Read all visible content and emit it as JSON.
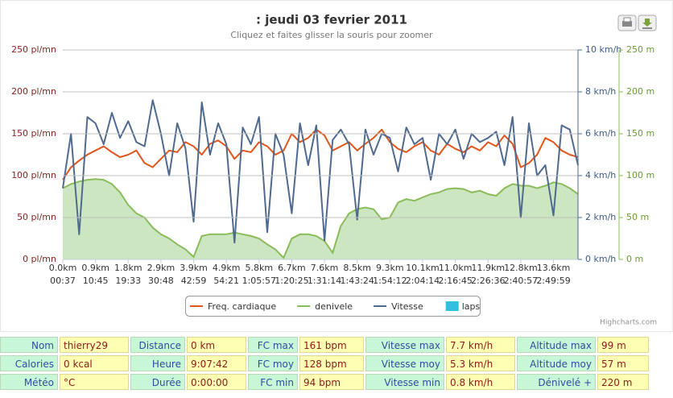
{
  "chart_data": {
    "type": "line",
    "title": ": jeudi 03 fevrier 2011",
    "subtitle": "Cliquez et faites glisser la souris pour zoomer",
    "xlim": [
      0,
      63
    ],
    "xticks": [
      {
        "value": 0,
        "label": "0.0km"
      },
      {
        "value": 4,
        "label": "0.9km"
      },
      {
        "value": 8,
        "label": "1.8km"
      },
      {
        "value": 12,
        "label": "2.9km"
      },
      {
        "value": 16,
        "label": "3.9km"
      },
      {
        "value": 20,
        "label": "4.9km"
      },
      {
        "value": 24,
        "label": "5.8km"
      },
      {
        "value": 28,
        "label": "6.7km"
      },
      {
        "value": 32,
        "label": "7.6km"
      },
      {
        "value": 36,
        "label": "8.5km"
      },
      {
        "value": 40,
        "label": "9.3km"
      },
      {
        "value": 44,
        "label": "10.1km"
      },
      {
        "value": 48,
        "label": "11.0km"
      },
      {
        "value": 52,
        "label": "11.9km"
      },
      {
        "value": 56,
        "label": "12.8km"
      },
      {
        "value": 60,
        "label": "13.6km"
      }
    ],
    "xtick_times": [
      "00:37",
      "10:45",
      "19:33",
      "30:48",
      "42:59",
      "54:21",
      "1:05:57",
      "1:20:25",
      "1:31:14",
      "1:43:24",
      "1:54:12",
      "2:04:14",
      "2:16:45",
      "2:26:36",
      "2:40:57",
      "2:49:59"
    ],
    "ylim": [
      0,
      250
    ],
    "yticks": [
      {
        "value": 0,
        "label": "0 pl/mn"
      },
      {
        "value": 50,
        "label": "50 pl/mn"
      },
      {
        "value": 100,
        "label": "100 pl/mn"
      },
      {
        "value": 150,
        "label": "150 pl/mn"
      },
      {
        "value": 200,
        "label": "200 pl/mn"
      },
      {
        "value": 250,
        "label": "250 pl/mn"
      }
    ],
    "y2lim": [
      0,
      10
    ],
    "y2ticks": [
      {
        "value": 0,
        "label": "0 km/h"
      },
      {
        "value": 2,
        "label": "2 km/h"
      },
      {
        "value": 4,
        "label": "4 km/h"
      },
      {
        "value": 6,
        "label": "6 km/h"
      },
      {
        "value": 8,
        "label": "8 km/h"
      },
      {
        "value": 10,
        "label": "10 km/h"
      }
    ],
    "y3lim": [
      0,
      250
    ],
    "y3ticks": [
      {
        "value": 0,
        "label": "0 m"
      },
      {
        "value": 50,
        "label": "50 m"
      },
      {
        "value": 100,
        "label": "100 m"
      },
      {
        "value": 150,
        "label": "150 m"
      },
      {
        "value": 200,
        "label": "200 m"
      },
      {
        "value": 250,
        "label": "250 m"
      }
    ],
    "grid": true,
    "series": [
      {
        "name": "Freq. cardiaque",
        "color": "#e0561c",
        "axis": "y",
        "type": "line",
        "values": [
          95,
          110,
          118,
          125,
          130,
          135,
          128,
          122,
          125,
          130,
          115,
          110,
          120,
          130,
          128,
          140,
          135,
          125,
          138,
          142,
          135,
          120,
          130,
          128,
          140,
          135,
          125,
          130,
          150,
          140,
          145,
          155,
          148,
          130,
          135,
          140,
          130,
          138,
          145,
          155,
          140,
          132,
          128,
          135,
          140,
          130,
          125,
          138,
          132,
          128,
          135,
          130,
          140,
          135,
          148,
          138,
          110,
          115,
          125,
          145,
          140,
          130,
          125,
          122
        ]
      },
      {
        "name": "denivele",
        "color": "#8bbc5a",
        "fill": "#cbe6c0",
        "axis": "y3",
        "type": "area",
        "values": [
          85,
          90,
          93,
          95,
          96,
          95,
          90,
          80,
          65,
          55,
          50,
          38,
          30,
          25,
          18,
          12,
          3,
          28,
          30,
          30,
          30,
          32,
          30,
          28,
          25,
          18,
          12,
          2,
          25,
          30,
          30,
          28,
          22,
          8,
          40,
          55,
          60,
          62,
          60,
          48,
          50,
          68,
          72,
          70,
          74,
          78,
          80,
          84,
          85,
          84,
          80,
          82,
          78,
          76,
          85,
          90,
          88,
          88,
          85,
          88,
          92,
          90,
          85,
          78
        ]
      },
      {
        "name": "Vitesse",
        "color": "#4f6a8f",
        "axis": "y2",
        "type": "line",
        "values": [
          3.4,
          6.0,
          1.2,
          6.8,
          6.5,
          5.5,
          7.0,
          5.8,
          6.6,
          5.6,
          5.4,
          7.6,
          6.0,
          4.0,
          6.5,
          5.3,
          1.8,
          7.5,
          5.0,
          6.5,
          5.5,
          0.8,
          6.3,
          5.5,
          6.8,
          1.3,
          6.0,
          5.0,
          2.2,
          6.5,
          4.5,
          6.4,
          0.9,
          5.7,
          6.2,
          5.5,
          1.9,
          6.2,
          5.0,
          6.0,
          5.8,
          4.2,
          6.3,
          5.5,
          5.8,
          3.8,
          6.0,
          5.5,
          6.2,
          4.8,
          6.0,
          5.6,
          5.8,
          6.1,
          4.5,
          6.8,
          2.0,
          6.5,
          4.0,
          4.5,
          2.1,
          6.4,
          6.2,
          4.5
        ]
      },
      {
        "name": "laps",
        "color": "#31c0e0",
        "axis": "y",
        "type": "column",
        "values": []
      }
    ],
    "legend": "bottom",
    "credit": "Highcharts.com"
  },
  "table": {
    "rows": [
      [
        "Nom",
        "thierry29",
        "Distance",
        "0 km",
        "FC max",
        "161 bpm",
        "Vitesse max",
        "7.7 km/h",
        "Altitude max",
        "99 m"
      ],
      [
        "Calories",
        "0 kcal",
        "Heure",
        "9:07:42",
        "FC moy",
        "128 bpm",
        "Vitesse moy",
        "5.3 km/h",
        "Altitude moy",
        "57 m"
      ],
      [
        "Météo",
        "°C",
        "Durée",
        "0:00:00",
        "FC min",
        "94 bpm",
        "Vitesse min",
        "0.8 km/h",
        "Dénivelé +",
        "220 m"
      ]
    ]
  }
}
